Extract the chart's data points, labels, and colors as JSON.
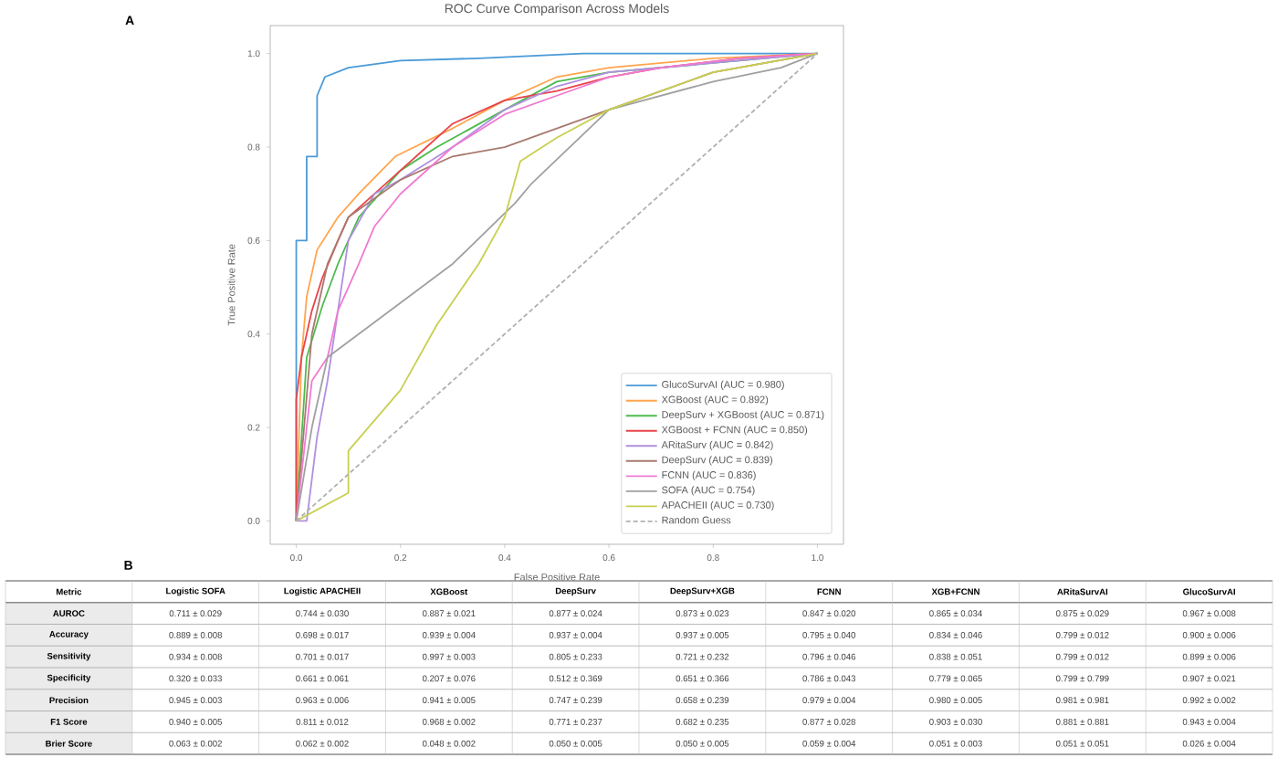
{
  "chart_data": [
    {
      "type": "line",
      "title": "ROC Curve Comparison Across Models",
      "xlabel": "False Positive Rate",
      "ylabel": "True Positive Rate",
      "annotations": [
        "A"
      ],
      "xlim": [
        -0.05,
        1.05
      ],
      "ylim": [
        -0.05,
        1.06
      ],
      "xticks": [
        {
          "value": 0,
          "label": "0.0"
        },
        0.2,
        0.4,
        0.6,
        0.8,
        {
          "value": 1,
          "label": "1.0"
        }
      ],
      "yticks": [
        {
          "value": 0,
          "label": "0.0"
        },
        0.2,
        0.4,
        0.6,
        0.8,
        {
          "value": 1,
          "label": "1.0"
        }
      ],
      "legend": "bottom right",
      "series": [
        {
          "name": "GlucoSurvAI (AUC = 0.980)",
          "color": "#4a9ad8",
          "x": [
            0,
            0,
            0.02,
            0.02,
            0.04,
            0.04,
            0.055,
            0.1,
            0.2,
            0.35,
            0.55,
            1.0
          ],
          "values": [
            0,
            0.6,
            0.6,
            0.78,
            0.78,
            0.91,
            0.95,
            0.97,
            0.985,
            0.99,
            1.0,
            1.0
          ]
        },
        {
          "name": "XGBoost (AUC = 0.892)",
          "color": "#ffa54f",
          "x": [
            0,
            0.01,
            0.02,
            0.04,
            0.08,
            0.12,
            0.19,
            0.3,
            0.4,
            0.5,
            0.6,
            0.8,
            1.0
          ],
          "values": [
            0,
            0.35,
            0.48,
            0.58,
            0.65,
            0.7,
            0.78,
            0.84,
            0.9,
            0.95,
            0.97,
            0.99,
            1.0
          ]
        },
        {
          "name": "DeepSurv + XGBoost (AUC = 0.871)",
          "color": "#4dbb4d",
          "x": [
            0,
            0.02,
            0.05,
            0.08,
            0.12,
            0.2,
            0.27,
            0.4,
            0.5,
            0.6,
            0.8,
            1.0
          ],
          "values": [
            0,
            0.35,
            0.46,
            0.55,
            0.65,
            0.75,
            0.8,
            0.88,
            0.94,
            0.96,
            0.98,
            1.0
          ]
        },
        {
          "name": "XGBoost + FCNN (AUC = 0.850)",
          "color": "#e8444a",
          "x": [
            0,
            0,
            0.01,
            0.03,
            0.05,
            0.08,
            0.1,
            0.15,
            0.2,
            0.25,
            0.3,
            0.4,
            0.5,
            0.6,
            0.7,
            0.85,
            1.0
          ],
          "values": [
            0,
            0.26,
            0.35,
            0.45,
            0.52,
            0.6,
            0.65,
            0.7,
            0.75,
            0.8,
            0.85,
            0.9,
            0.92,
            0.95,
            0.97,
            0.99,
            1.0
          ]
        },
        {
          "name": "ARitaSurv (AUC = 0.842)",
          "color": "#b08fe0",
          "x": [
            0,
            0.02,
            0.04,
            0.06,
            0.08,
            0.1,
            0.15,
            0.2,
            0.3,
            0.4,
            0.5,
            0.6,
            0.8,
            1.0
          ],
          "values": [
            0,
            0,
            0.18,
            0.3,
            0.45,
            0.6,
            0.7,
            0.73,
            0.8,
            0.88,
            0.93,
            0.96,
            0.98,
            1.0
          ]
        },
        {
          "name": "DeepSurv (AUC = 0.839)",
          "color": "#a87a6f",
          "x": [
            0,
            0.03,
            0.06,
            0.1,
            0.2,
            0.3,
            0.4,
            0.5,
            0.6,
            0.7,
            0.8,
            1.0
          ],
          "values": [
            0,
            0.4,
            0.55,
            0.65,
            0.73,
            0.78,
            0.8,
            0.84,
            0.88,
            0.92,
            0.96,
            1.0
          ]
        },
        {
          "name": "FCNN (AUC = 0.836)",
          "color": "#f07ad2",
          "x": [
            0,
            0.03,
            0.06,
            0.08,
            0.1,
            0.12,
            0.15,
            0.2,
            0.3,
            0.4,
            0.5,
            0.6,
            0.7,
            0.85,
            1.0
          ],
          "values": [
            0,
            0.3,
            0.35,
            0.45,
            0.5,
            0.55,
            0.63,
            0.7,
            0.8,
            0.87,
            0.91,
            0.95,
            0.97,
            0.99,
            1.0
          ]
        },
        {
          "name": "SOFA (AUC = 0.754)",
          "color": "#a0a0a0",
          "x": [
            0,
            0.03,
            0.06,
            0.3,
            0.42,
            0.45,
            0.6,
            0.8,
            0.93,
            1.0
          ],
          "values": [
            0,
            0.2,
            0.35,
            0.55,
            0.68,
            0.72,
            0.88,
            0.94,
            0.97,
            1.0
          ]
        },
        {
          "name": "APACHEII (AUC = 0.730)",
          "color": "#c8cf50",
          "x": [
            0,
            0.1,
            0.1,
            0.2,
            0.27,
            0.35,
            0.4,
            0.43,
            0.5,
            0.6,
            0.7,
            0.8,
            1.0
          ],
          "values": [
            0,
            0.06,
            0.15,
            0.28,
            0.42,
            0.55,
            0.65,
            0.77,
            0.82,
            0.88,
            0.92,
            0.96,
            1.0
          ]
        },
        {
          "name": "Random Guess",
          "color": "#b0b0b0",
          "line_style": "dashed",
          "x": [
            0,
            1
          ],
          "values": [
            0,
            1
          ]
        }
      ]
    },
    {
      "type": "other",
      "annotations": [
        "B"
      ],
      "ylabel": "Metric",
      "categories": [
        "Logistic SOFA",
        "Logistic APACHEII",
        "XGBoost",
        "DeepSurv",
        "DeepSurv+XGB",
        "FCNN",
        "XGB+FCNN",
        "ARitaSurvAI",
        "GlucoSurvAI"
      ],
      "y_categories": [
        "AUROC",
        "Accuracy",
        "Sensitivity",
        "Specificity",
        "Precision",
        "F1 Score",
        "Brier Score"
      ],
      "cell_labels": [
        [
          "0.711 ± 0.029",
          "0.744 ± 0.030",
          "0.887 ± 0.021",
          "0.877 ± 0.024",
          "0.873 ± 0.023",
          "0.847 ± 0.020",
          "0.865 ± 0.034",
          "0.875 ± 0.029",
          "0.967 ± 0.008"
        ],
        [
          "0.889 ± 0.008",
          "0.698 ± 0.017",
          "0.939 ± 0.004",
          "0.937 ± 0.004",
          "0.937 ± 0.005",
          "0.795 ± 0.040",
          "0.834 ± 0.046",
          "0.799 ± 0.012",
          "0.900 ± 0.006"
        ],
        [
          "0.934 ± 0.008",
          "0.701 ± 0.017",
          "0.997 ± 0.003",
          "0.805 ± 0.233",
          "0.721 ± 0.232",
          "0.796 ± 0.046",
          "0.838 ± 0.051",
          "0.799 ± 0.012",
          "0.899 ± 0.006"
        ],
        [
          "0.320 ± 0.033",
          "0.661 ± 0.061",
          "0.207 ± 0.076",
          "0.512 ± 0.369",
          "0.651 ± 0.366",
          "0.786 ± 0.043",
          "0.779 ± 0.065",
          "0.799 ± 0.799",
          "0.907 ± 0.021"
        ],
        [
          "0.945 ± 0.003",
          "0.963 ± 0.006",
          "0.941 ± 0.005",
          "0.747 ± 0.239",
          "0.658 ± 0.239",
          "0.979 ± 0.004",
          "0.980 ± 0.005",
          "0.981 ± 0.981",
          "0.992 ± 0.002"
        ],
        [
          "0.940 ± 0.005",
          "0.811 ± 0.012",
          "0.968 ± 0.002",
          "0.771 ± 0.237",
          "0.682 ± 0.235",
          "0.877 ± 0.028",
          "0.903 ± 0.030",
          "0.881 ± 0.881",
          "0.943 ± 0.004"
        ],
        [
          "0.063 ± 0.002",
          "0.062 ± 0.002",
          "0.048 ± 0.002",
          "0.050 ± 0.005",
          "0.050 ± 0.005",
          "0.059 ± 0.004",
          "0.051 ± 0.003",
          "0.051 ± 0.051",
          "0.026 ± 0.004"
        ]
      ]
    }
  ]
}
